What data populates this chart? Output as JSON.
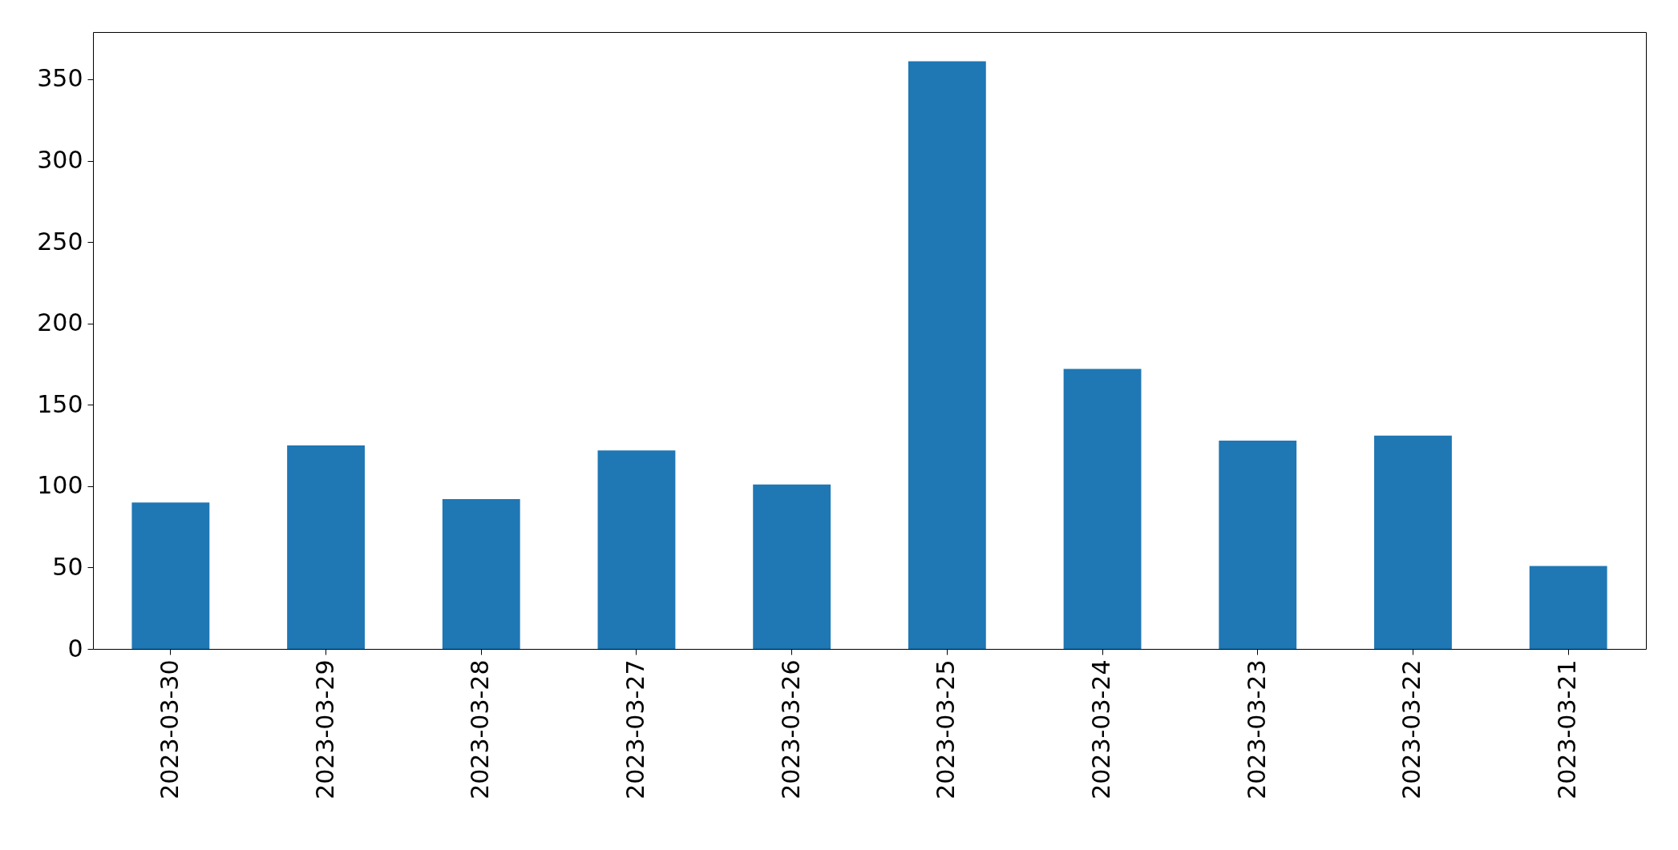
{
  "chart_data": {
    "type": "bar",
    "categories": [
      "2023-03-30",
      "2023-03-29",
      "2023-03-28",
      "2023-03-27",
      "2023-03-26",
      "2023-03-25",
      "2023-03-24",
      "2023-03-23",
      "2023-03-22",
      "2023-03-21"
    ],
    "values": [
      90,
      125,
      92,
      122,
      101,
      361,
      172,
      128,
      131,
      51
    ],
    "color": "#1f77b4",
    "ylim": [
      0,
      379
    ],
    "yticks": [
      0,
      50,
      100,
      150,
      200,
      250,
      300,
      350
    ],
    "grid": false
  }
}
